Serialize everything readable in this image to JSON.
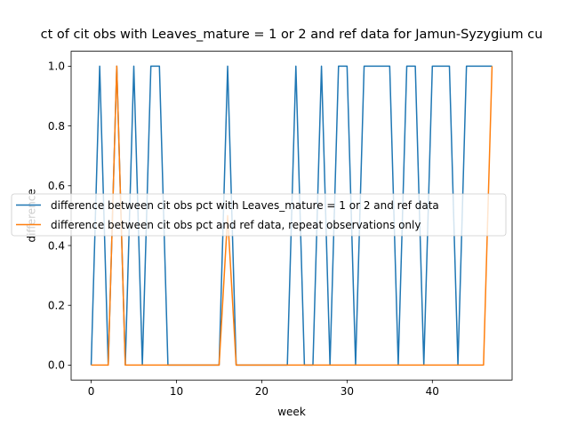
{
  "chart_data": {
    "type": "line",
    "title": "ct of cit obs with Leaves_mature = 1 or 2 and ref data for Jamun-Syzygium cu",
    "xlabel": "week",
    "ylabel": "difference",
    "xlim": [
      -2.35,
      49.35
    ],
    "ylim": [
      -0.05,
      1.05
    ],
    "xticks": [
      0,
      10,
      20,
      30,
      40
    ],
    "yticks": [
      0.0,
      0.2,
      0.4,
      0.6,
      0.8,
      1.0
    ],
    "xtick_labels": [
      "0",
      "10",
      "20",
      "30",
      "40"
    ],
    "ytick_labels": [
      "0.0",
      "0.2",
      "0.4",
      "0.6",
      "0.8",
      "1.0"
    ],
    "legend_placement": "center-left",
    "series": [
      {
        "name": "difference between cit obs pct with Leaves_mature = 1 or 2 and ref data",
        "color": "#1f77b4",
        "x": [
          0,
          1,
          2,
          3,
          4,
          5,
          6,
          7,
          8,
          9,
          10,
          11,
          12,
          13,
          14,
          15,
          16,
          17,
          18,
          19,
          20,
          21,
          22,
          23,
          24,
          25,
          26,
          27,
          28,
          29,
          30,
          31,
          32,
          33,
          34,
          35,
          36,
          37,
          38,
          39,
          40,
          41,
          42,
          43,
          44,
          45,
          46,
          47
        ],
        "y": [
          0,
          1,
          0,
          1,
          0,
          1,
          0,
          1,
          1,
          0,
          0,
          0,
          0,
          0,
          0,
          0,
          1,
          0,
          0,
          0,
          0,
          0,
          0,
          0,
          1,
          0,
          0,
          1,
          0,
          1,
          1,
          0,
          1,
          1,
          1,
          1,
          0,
          1,
          1,
          0,
          1,
          1,
          1,
          0,
          1,
          1,
          1,
          1
        ]
      },
      {
        "name": "difference between cit obs pct and ref data, repeat observations only",
        "color": "#ff7f0e",
        "x": [
          0,
          1,
          2,
          3,
          4,
          5,
          6,
          7,
          8,
          9,
          10,
          11,
          12,
          13,
          14,
          15,
          16,
          17,
          18,
          19,
          20,
          21,
          22,
          23,
          24,
          25,
          26,
          27,
          28,
          29,
          30,
          31,
          32,
          33,
          34,
          35,
          36,
          37,
          38,
          39,
          40,
          41,
          42,
          43,
          44,
          45,
          46,
          47
        ],
        "y": [
          0,
          0,
          0,
          1,
          0,
          0,
          0,
          0,
          0,
          0,
          0,
          0,
          0,
          0,
          0,
          0,
          0.5,
          0,
          0,
          0,
          0,
          0,
          0,
          0,
          0,
          0,
          0,
          0,
          0,
          0,
          0,
          0,
          0,
          0,
          0,
          0,
          0,
          0,
          0,
          0,
          0,
          0,
          0,
          0,
          0,
          0,
          0,
          1
        ]
      }
    ]
  }
}
